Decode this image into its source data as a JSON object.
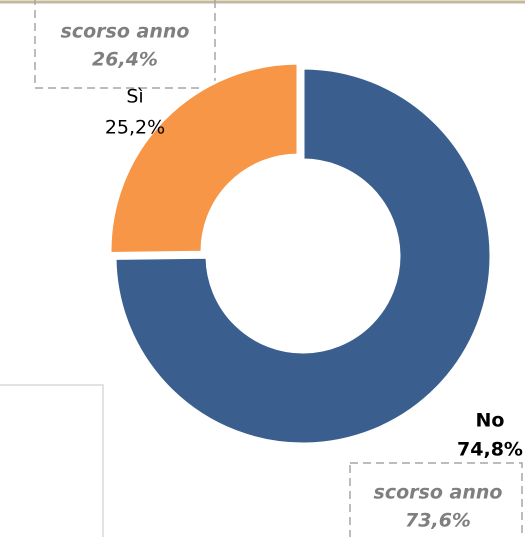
{
  "chart_data": {
    "type": "donut",
    "categories": [
      "Sì",
      "No"
    ],
    "values": [
      25.2,
      74.8
    ],
    "value_labels": [
      "25,2%",
      "74,8%"
    ],
    "colors": [
      "#f79646",
      "#3a5f8f"
    ],
    "annotations": [
      {
        "text": "scorso anno",
        "label": "26,4%"
      },
      {
        "text": "scorso anno",
        "label": "73,6%"
      }
    ]
  }
}
